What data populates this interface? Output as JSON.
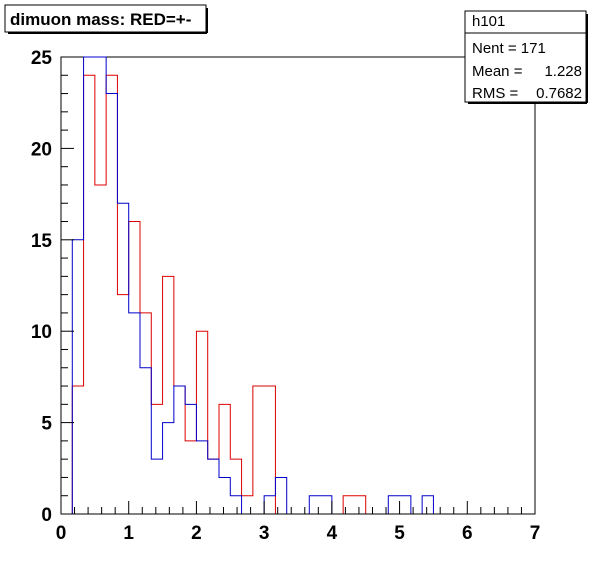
{
  "chart_data": {
    "type": "histogram",
    "title": "dimuon mass: RED=+-",
    "xlim": [
      0,
      7
    ],
    "ylim": [
      0,
      25
    ],
    "x_ticks": [
      "0",
      "1",
      "2",
      "3",
      "4",
      "5",
      "6",
      "7"
    ],
    "y_ticks": [
      "0",
      "5",
      "10",
      "15",
      "20",
      "25"
    ],
    "bin_width": 0.166667,
    "bin_start": 0.166667,
    "grid": false,
    "series": [
      {
        "color": "#dd0000",
        "values": [
          7,
          24,
          18,
          24,
          12,
          16,
          11,
          6,
          13,
          7,
          4,
          10,
          3,
          6,
          3,
          1,
          7,
          7,
          0,
          0,
          0,
          0,
          0,
          0,
          1,
          1,
          0,
          0,
          0,
          0,
          0,
          0,
          0,
          0,
          0,
          0,
          0,
          0,
          0,
          0,
          0
        ]
      },
      {
        "color": "#0000cc",
        "values": [
          15,
          25,
          25,
          23,
          17,
          11,
          8,
          3,
          5,
          7,
          6,
          4,
          3,
          2,
          1,
          0,
          0,
          1,
          2,
          0,
          0,
          1,
          1,
          0,
          0,
          0,
          0,
          0,
          1,
          1,
          0,
          1,
          0,
          0,
          0,
          0,
          0,
          0,
          0,
          0,
          0
        ]
      }
    ]
  },
  "stats_box": {
    "name": "h101",
    "rows": [
      {
        "label": "Nent = 171",
        "value": ""
      },
      {
        "label": "Mean  =",
        "value": "1.228"
      },
      {
        "label": "RMS   =",
        "value": "0.7682"
      }
    ]
  }
}
